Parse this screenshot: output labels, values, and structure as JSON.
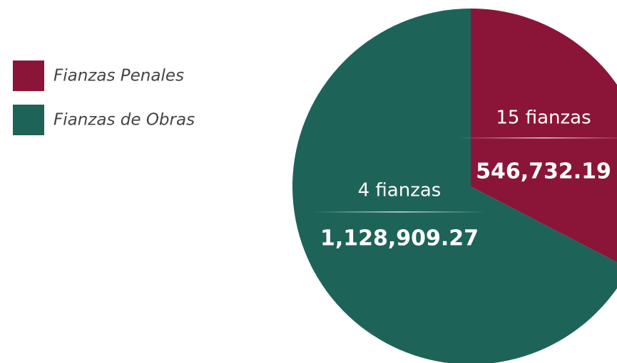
{
  "chart_data": {
    "type": "pie",
    "categories": [
      "Fianzas Penales",
      "Fianzas de Obras"
    ],
    "values": [
      546732.19,
      1128909.27
    ],
    "value_labels": [
      "546,732.19",
      "1,128,909.27"
    ],
    "labels": [
      "15 fianzas",
      "4 fianzas"
    ],
    "colors": [
      "#8b1538",
      "#1e6358"
    ],
    "legend": "left"
  }
}
